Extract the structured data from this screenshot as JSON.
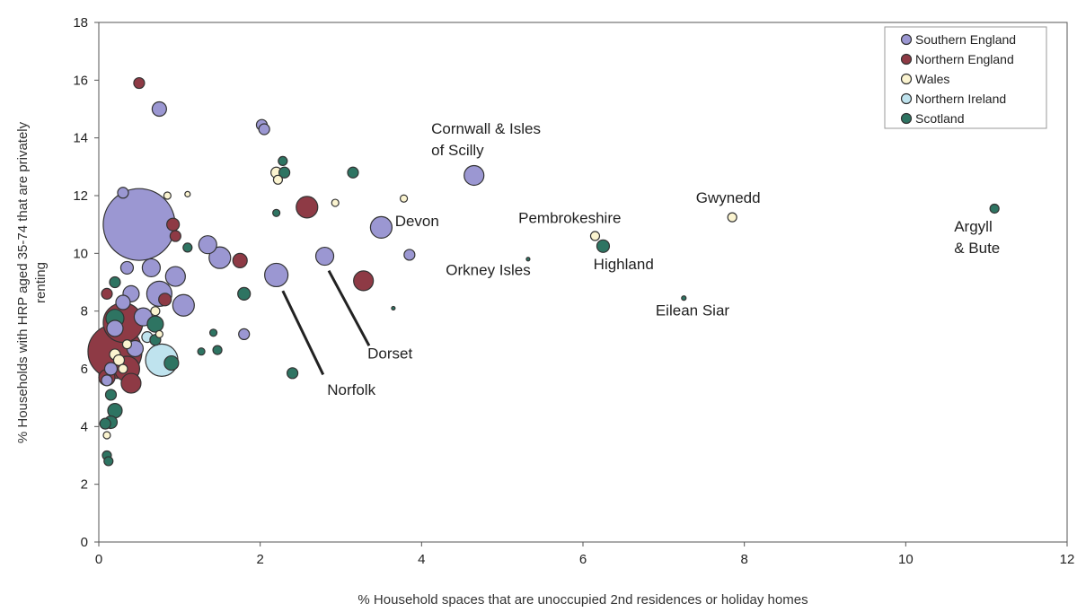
{
  "chart_data": {
    "type": "scatter",
    "xlabel": "% Household spaces that are unoccupied 2nd residences or holiday homes",
    "ylabel": "% Households with HRP aged 35-74 that are privately renting",
    "xlim": [
      0,
      12
    ],
    "ylim": [
      0,
      18
    ],
    "xticks": [
      "0",
      "2",
      "4",
      "6",
      "8",
      "10",
      "12"
    ],
    "yticks": [
      "0",
      "2",
      "4",
      "6",
      "8",
      "10",
      "12",
      "14",
      "16",
      "18"
    ],
    "grid": false,
    "legend_position": "top-right",
    "series": [
      {
        "name": "Southern England",
        "color": "#9b97d2",
        "points": [
          {
            "x": 0.5,
            "y": 11.0,
            "r": 40
          },
          {
            "x": 0.75,
            "y": 15.0,
            "r": 8
          },
          {
            "x": 2.02,
            "y": 14.45,
            "r": 6
          },
          {
            "x": 2.05,
            "y": 14.3,
            "r": 6
          },
          {
            "x": 0.3,
            "y": 12.1,
            "r": 6
          },
          {
            "x": 4.65,
            "y": 12.7,
            "r": 11
          },
          {
            "x": 3.5,
            "y": 10.9,
            "r": 12
          },
          {
            "x": 1.35,
            "y": 10.3,
            "r": 10
          },
          {
            "x": 1.5,
            "y": 9.85,
            "r": 12
          },
          {
            "x": 2.8,
            "y": 9.9,
            "r": 10
          },
          {
            "x": 3.85,
            "y": 9.95,
            "r": 6
          },
          {
            "x": 2.2,
            "y": 9.25,
            "r": 13
          },
          {
            "x": 0.95,
            "y": 9.2,
            "r": 11
          },
          {
            "x": 0.65,
            "y": 9.5,
            "r": 10
          },
          {
            "x": 0.35,
            "y": 9.5,
            "r": 7
          },
          {
            "x": 0.75,
            "y": 8.6,
            "r": 14
          },
          {
            "x": 1.05,
            "y": 8.2,
            "r": 12
          },
          {
            "x": 0.4,
            "y": 8.6,
            "r": 9
          },
          {
            "x": 0.3,
            "y": 8.3,
            "r": 8
          },
          {
            "x": 0.55,
            "y": 7.8,
            "r": 10
          },
          {
            "x": 0.2,
            "y": 7.4,
            "r": 9
          },
          {
            "x": 1.8,
            "y": 7.2,
            "r": 6
          },
          {
            "x": 0.45,
            "y": 6.7,
            "r": 9
          },
          {
            "x": 0.15,
            "y": 6.0,
            "r": 7
          },
          {
            "x": 0.1,
            "y": 5.6,
            "r": 6
          }
        ]
      },
      {
        "name": "Northern England",
        "color": "#8e3a45",
        "points": [
          {
            "x": 0.5,
            "y": 15.9,
            "r": 6
          },
          {
            "x": 2.58,
            "y": 11.6,
            "r": 12
          },
          {
            "x": 0.92,
            "y": 11.0,
            "r": 7
          },
          {
            "x": 0.95,
            "y": 10.6,
            "r": 6
          },
          {
            "x": 1.75,
            "y": 9.75,
            "r": 8
          },
          {
            "x": 3.28,
            "y": 9.05,
            "r": 11
          },
          {
            "x": 0.82,
            "y": 8.4,
            "r": 7
          },
          {
            "x": 0.1,
            "y": 8.6,
            "r": 6
          },
          {
            "x": 0.3,
            "y": 7.6,
            "r": 22
          },
          {
            "x": 0.2,
            "y": 6.6,
            "r": 30
          },
          {
            "x": 0.35,
            "y": 6.0,
            "r": 14
          },
          {
            "x": 0.4,
            "y": 5.5,
            "r": 11
          },
          {
            "x": 0.1,
            "y": 5.7,
            "r": 9
          }
        ]
      },
      {
        "name": "Wales",
        "color": "#fbf4d0",
        "points": [
          {
            "x": 2.2,
            "y": 12.8,
            "r": 6
          },
          {
            "x": 2.22,
            "y": 12.55,
            "r": 5
          },
          {
            "x": 0.85,
            "y": 12.0,
            "r": 4
          },
          {
            "x": 1.1,
            "y": 12.05,
            "r": 3
          },
          {
            "x": 2.93,
            "y": 11.75,
            "r": 4
          },
          {
            "x": 3.78,
            "y": 11.9,
            "r": 4
          },
          {
            "x": 6.15,
            "y": 10.6,
            "r": 5
          },
          {
            "x": 7.85,
            "y": 11.25,
            "r": 5
          },
          {
            "x": 0.7,
            "y": 8.0,
            "r": 5
          },
          {
            "x": 0.75,
            "y": 7.2,
            "r": 4
          },
          {
            "x": 0.35,
            "y": 6.85,
            "r": 5
          },
          {
            "x": 0.2,
            "y": 6.5,
            "r": 6
          },
          {
            "x": 0.25,
            "y": 6.3,
            "r": 6
          },
          {
            "x": 0.3,
            "y": 6.0,
            "r": 5
          },
          {
            "x": 0.1,
            "y": 3.7,
            "r": 4
          }
        ]
      },
      {
        "name": "Northern Ireland",
        "color": "#bfe3ee",
        "points": [
          {
            "x": 0.78,
            "y": 6.3,
            "r": 18
          },
          {
            "x": 0.6,
            "y": 7.1,
            "r": 6
          }
        ]
      },
      {
        "name": "Scotland",
        "color": "#2e7462",
        "points": [
          {
            "x": 2.28,
            "y": 13.2,
            "r": 5
          },
          {
            "x": 2.3,
            "y": 12.8,
            "r": 6
          },
          {
            "x": 3.15,
            "y": 12.8,
            "r": 6
          },
          {
            "x": 2.2,
            "y": 11.4,
            "r": 4
          },
          {
            "x": 11.1,
            "y": 11.55,
            "r": 5
          },
          {
            "x": 6.25,
            "y": 10.25,
            "r": 7
          },
          {
            "x": 1.1,
            "y": 10.2,
            "r": 5
          },
          {
            "x": 5.32,
            "y": 9.8,
            "r": 2
          },
          {
            "x": 0.2,
            "y": 9.0,
            "r": 6
          },
          {
            "x": 1.8,
            "y": 8.6,
            "r": 7
          },
          {
            "x": 7.25,
            "y": 8.45,
            "r": 2.5
          },
          {
            "x": 3.65,
            "y": 8.1,
            "r": 2
          },
          {
            "x": 0.2,
            "y": 7.75,
            "r": 10
          },
          {
            "x": 0.7,
            "y": 7.55,
            "r": 9
          },
          {
            "x": 0.7,
            "y": 7.0,
            "r": 6
          },
          {
            "x": 1.42,
            "y": 7.25,
            "r": 4
          },
          {
            "x": 1.27,
            "y": 6.6,
            "r": 4
          },
          {
            "x": 1.47,
            "y": 6.65,
            "r": 5
          },
          {
            "x": 0.9,
            "y": 6.2,
            "r": 8
          },
          {
            "x": 2.4,
            "y": 5.85,
            "r": 6
          },
          {
            "x": 0.15,
            "y": 5.1,
            "r": 6
          },
          {
            "x": 0.2,
            "y": 4.55,
            "r": 8
          },
          {
            "x": 0.15,
            "y": 4.15,
            "r": 7
          },
          {
            "x": 0.08,
            "y": 4.1,
            "r": 6
          },
          {
            "x": 0.1,
            "y": 3.0,
            "r": 5
          },
          {
            "x": 0.12,
            "y": 2.8,
            "r": 5
          }
        ]
      }
    ],
    "annotations": [
      {
        "lines": [
          "Cornwall & Isles",
          "of Scilly"
        ],
        "x": 4.12,
        "y": 14.15
      },
      {
        "lines": [
          "Devon"
        ],
        "x": 3.67,
        "y": 10.95
      },
      {
        "lines": [
          "Pembrokeshire"
        ],
        "x": 5.2,
        "y": 11.05
      },
      {
        "lines": [
          "Gwynedd"
        ],
        "x": 7.4,
        "y": 11.75
      },
      {
        "lines": [
          "Argyll",
          "& Bute"
        ],
        "x": 10.6,
        "y": 10.75
      },
      {
        "lines": [
          "Orkney Isles"
        ],
        "x": 4.3,
        "y": 9.25
      },
      {
        "lines": [
          "Highland"
        ],
        "x": 6.13,
        "y": 9.45
      },
      {
        "lines": [
          "Eilean Siar"
        ],
        "x": 6.9,
        "y": 7.85
      },
      {
        "lines": [
          "Dorset"
        ],
        "x": 3.33,
        "y": 6.35
      },
      {
        "lines": [
          "Norfolk"
        ],
        "x": 2.83,
        "y": 5.1
      }
    ],
    "leader_lines": [
      {
        "x1": 2.28,
        "y1": 8.7,
        "x2": 2.78,
        "y2": 5.8
      },
      {
        "x1": 2.85,
        "y1": 9.4,
        "x2": 3.35,
        "y2": 6.8
      }
    ]
  }
}
